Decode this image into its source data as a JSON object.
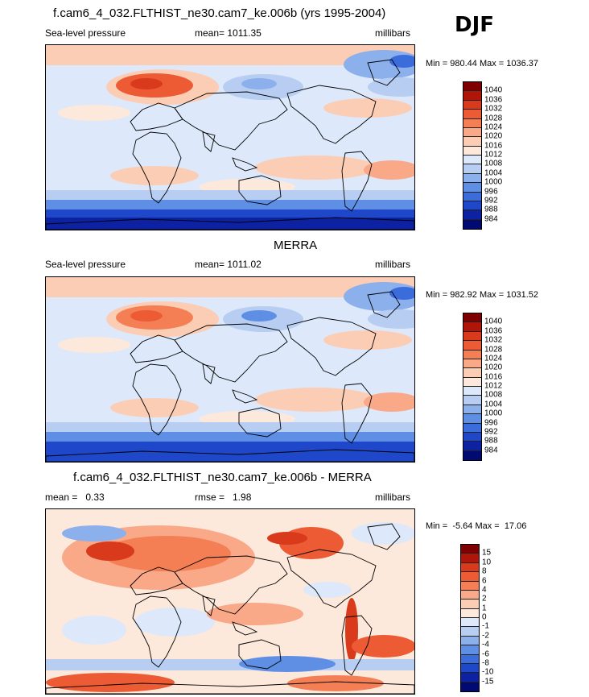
{
  "season": "DJF",
  "panels": [
    {
      "title": "f.cam6_4_032.FLTHIST_ne30.cam7_ke.006b (yrs 1995-2004)",
      "left_label": "Sea-level pressure",
      "center_label": "mean= 1011.35",
      "right_label": "millibars",
      "minmax": "Min = 980.44 Max = 1036.37",
      "colorbar": {
        "labels": [
          "1040",
          "1036",
          "1032",
          "1028",
          "1024",
          "1020",
          "1016",
          "1012",
          "1008",
          "1004",
          "1000",
          "996",
          "992",
          "988",
          "984"
        ],
        "colors": [
          "#7f0000",
          "#b0150a",
          "#d93a1c",
          "#ec5b33",
          "#f47f55",
          "#f9a888",
          "#fccdb5",
          "#fde8dc",
          "#dde9fa",
          "#b7cdf2",
          "#8cb0ec",
          "#5f8fe4",
          "#3a6cdc",
          "#1f47c9",
          "#0c22a2",
          "#000a70"
        ]
      },
      "map_style": "model"
    },
    {
      "title": "MERRA",
      "left_label": "Sea-level pressure",
      "center_label": "mean= 1011.02",
      "right_label": "millibars",
      "minmax": "Min = 982.92 Max = 1031.52",
      "colorbar": {
        "labels": [
          "1040",
          "1036",
          "1032",
          "1028",
          "1024",
          "1020",
          "1016",
          "1012",
          "1008",
          "1004",
          "1000",
          "996",
          "992",
          "988",
          "984"
        ],
        "colors": [
          "#7f0000",
          "#b0150a",
          "#d93a1c",
          "#ec5b33",
          "#f47f55",
          "#f9a888",
          "#fccdb5",
          "#fde8dc",
          "#dde9fa",
          "#b7cdf2",
          "#8cb0ec",
          "#5f8fe4",
          "#3a6cdc",
          "#1f47c9",
          "#0c22a2",
          "#000a70"
        ]
      },
      "map_style": "obs"
    },
    {
      "title": "f.cam6_4_032.FLTHIST_ne30.cam7_ke.006b - MERRA",
      "left_label": "mean =   0.33",
      "center_label": "rmse =   1.98",
      "right_label": "millibars",
      "minmax": "Min =  -5.64 Max =  17.06",
      "colorbar": {
        "labels": [
          "15",
          "10",
          "8",
          "6",
          "4",
          "2",
          "1",
          "0",
          "-1",
          "-2",
          "-4",
          "-6",
          "-8",
          "-10",
          "-15"
        ],
        "colors": [
          "#7f0000",
          "#b0150a",
          "#d93a1c",
          "#ec5b33",
          "#f47f55",
          "#f9a888",
          "#fccdb5",
          "#fde8dc",
          "#dde9fa",
          "#b7cdf2",
          "#8cb0ec",
          "#5f8fe4",
          "#3a6cdc",
          "#1f47c9",
          "#0c22a2",
          "#000a70"
        ]
      },
      "map_style": "diff"
    }
  ]
}
